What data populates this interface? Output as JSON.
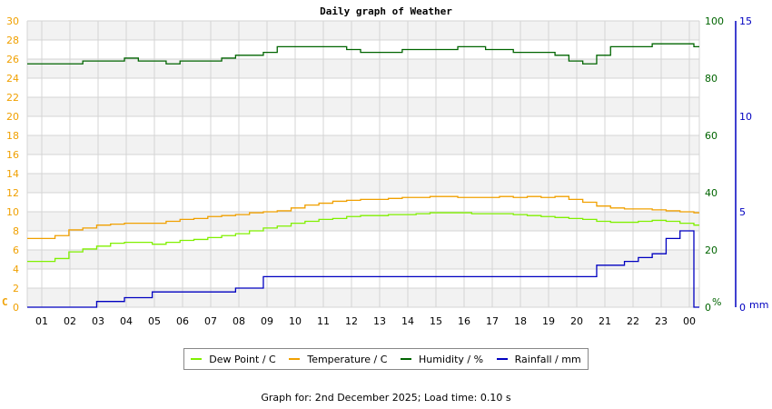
{
  "chart_data": {
    "type": "line",
    "title": "Daily graph of Weather",
    "x_ticks": [
      "01",
      "02",
      "03",
      "04",
      "05",
      "06",
      "07",
      "08",
      "09",
      "10",
      "11",
      "12",
      "13",
      "14",
      "15",
      "16",
      "17",
      "18",
      "19",
      "20",
      "21",
      "22",
      "23",
      "00"
    ],
    "axes": {
      "left": {
        "label": "C",
        "min": 0,
        "max": 30,
        "ticks": [
          0,
          2,
          4,
          6,
          8,
          10,
          12,
          14,
          16,
          18,
          20,
          22,
          24,
          26,
          28,
          30
        ],
        "color": "#f0a000"
      },
      "right1": {
        "label": "%",
        "min": 0,
        "max": 100,
        "ticks": [
          0,
          20,
          40,
          60,
          80,
          100
        ],
        "color": "#006400"
      },
      "right2": {
        "label": "mm",
        "min": 0,
        "max": 15,
        "ticks": [
          0,
          5,
          10,
          15
        ],
        "color": "#0000c0"
      }
    },
    "x": [
      0.5,
      1,
      1.5,
      2,
      2.5,
      3,
      3.5,
      4,
      4.5,
      5,
      5.5,
      6,
      6.5,
      7,
      7.5,
      8,
      8.5,
      9,
      9.5,
      10,
      10.5,
      11,
      11.5,
      12,
      12.5,
      13,
      13.5,
      14,
      14.5,
      15,
      15.5,
      16,
      16.5,
      17,
      17.5,
      18,
      18.5,
      19,
      19.5,
      20,
      20.5,
      21,
      21.5,
      22,
      22.5,
      23,
      23.5,
      24
    ],
    "series": [
      {
        "name": "Dew Point / C",
        "color": "#80f000",
        "axis": "left",
        "values": [
          4.8,
          5.1,
          5.8,
          6.1,
          6.4,
          6.7,
          6.8,
          6.8,
          6.6,
          6.8,
          7.0,
          7.1,
          7.3,
          7.5,
          7.7,
          8.0,
          8.3,
          8.5,
          8.8,
          9.0,
          9.2,
          9.3,
          9.5,
          9.6,
          9.6,
          9.7,
          9.7,
          9.8,
          9.9,
          9.9,
          9.9,
          9.8,
          9.8,
          9.8,
          9.7,
          9.6,
          9.5,
          9.4,
          9.3,
          9.2,
          9.0,
          8.9,
          8.9,
          9.0,
          9.1,
          9.0,
          8.8,
          8.6
        ]
      },
      {
        "name": "Temperature / C",
        "color": "#f0a000",
        "axis": "left",
        "values": [
          7.2,
          7.5,
          8.1,
          8.3,
          8.6,
          8.7,
          8.8,
          8.8,
          8.8,
          9.0,
          9.2,
          9.3,
          9.5,
          9.6,
          9.7,
          9.9,
          10.0,
          10.1,
          10.4,
          10.7,
          10.9,
          11.1,
          11.2,
          11.3,
          11.3,
          11.4,
          11.5,
          11.5,
          11.6,
          11.6,
          11.5,
          11.5,
          11.5,
          11.6,
          11.5,
          11.6,
          11.5,
          11.6,
          11.3,
          11.0,
          10.6,
          10.4,
          10.3,
          10.3,
          10.2,
          10.1,
          10.0,
          9.9
        ]
      },
      {
        "name": "Humidity / %",
        "color": "#006400",
        "axis": "right1",
        "values": [
          85,
          85,
          85,
          86,
          86,
          86,
          87,
          86,
          86,
          85,
          86,
          86,
          86,
          87,
          88,
          88,
          89,
          91,
          91,
          91,
          91,
          91,
          90,
          89,
          89,
          89,
          90,
          90,
          90,
          90,
          91,
          91,
          90,
          90,
          89,
          89,
          89,
          88,
          86,
          85,
          88,
          91,
          91,
          91,
          92,
          92,
          92,
          91
        ]
      },
      {
        "name": "Rainfall / mm",
        "color": "#0000c0",
        "axis": "right2",
        "values": [
          0,
          0,
          0,
          0,
          0.3,
          0.3,
          0.5,
          0.5,
          0.8,
          0.8,
          0.8,
          0.8,
          0.8,
          0.8,
          1.0,
          1.0,
          1.6,
          1.6,
          1.6,
          1.6,
          1.6,
          1.6,
          1.6,
          1.6,
          1.6,
          1.6,
          1.6,
          1.6,
          1.6,
          1.6,
          1.6,
          1.6,
          1.6,
          1.6,
          1.6,
          1.6,
          1.6,
          1.6,
          1.6,
          1.6,
          2.2,
          2.2,
          2.4,
          2.6,
          2.8,
          3.6,
          4.0,
          0
        ]
      }
    ],
    "legend_position": "bottom",
    "grid": true,
    "xlabel": "",
    "ylabel": "C"
  },
  "title": "Daily graph of Weather",
  "legend": [
    {
      "label": "Dew Point / C",
      "color": "#80f000"
    },
    {
      "label": "Temperature / C",
      "color": "#f0a000"
    },
    {
      "label": "Humidity / %",
      "color": "#006400"
    },
    {
      "label": "Rainfall / mm",
      "color": "#0000c0"
    }
  ],
  "footer": "Graph for: 2nd December 2025; Load time: 0.10 s"
}
